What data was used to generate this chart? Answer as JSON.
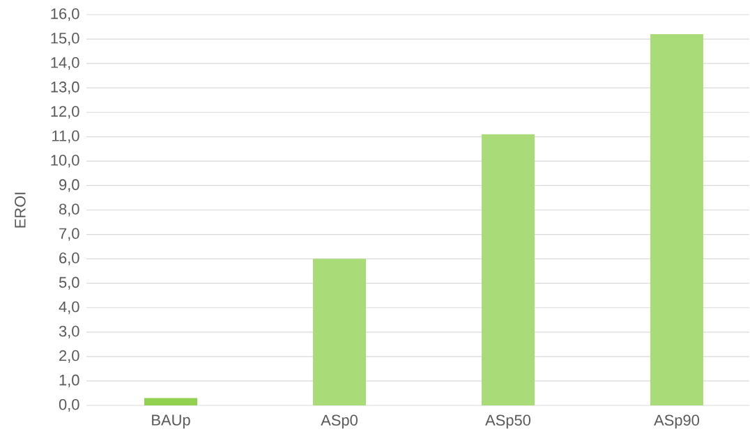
{
  "chart_data": {
    "type": "bar",
    "ylabel": "EROI",
    "categories": [
      "BAUp",
      "ASp0",
      "ASp50",
      "ASp90"
    ],
    "values": [
      0.3,
      6.0,
      11.1,
      15.2
    ],
    "colors": [
      "#92d050",
      "#a9dc78",
      "#a9dc78",
      "#a9dc78"
    ],
    "ylim": [
      0,
      16
    ],
    "yticks": [
      {
        "value": 0,
        "label": "0,0"
      },
      {
        "value": 1,
        "label": "1,0"
      },
      {
        "value": 2,
        "label": "2,0"
      },
      {
        "value": 3,
        "label": "3,0"
      },
      {
        "value": 4,
        "label": "4,0"
      },
      {
        "value": 5,
        "label": "5,0"
      },
      {
        "value": 6,
        "label": "6,0"
      },
      {
        "value": 7,
        "label": "7,0"
      },
      {
        "value": 8,
        "label": "8,0"
      },
      {
        "value": 9,
        "label": "9,0"
      },
      {
        "value": 10,
        "label": "10,0"
      },
      {
        "value": 11,
        "label": "11,0"
      },
      {
        "value": 12,
        "label": "12,0"
      },
      {
        "value": 13,
        "label": "13,0"
      },
      {
        "value": 14,
        "label": "14,0"
      },
      {
        "value": 15,
        "label": "15,0"
      },
      {
        "value": 16,
        "label": "16,0"
      }
    ],
    "grid": "y"
  }
}
